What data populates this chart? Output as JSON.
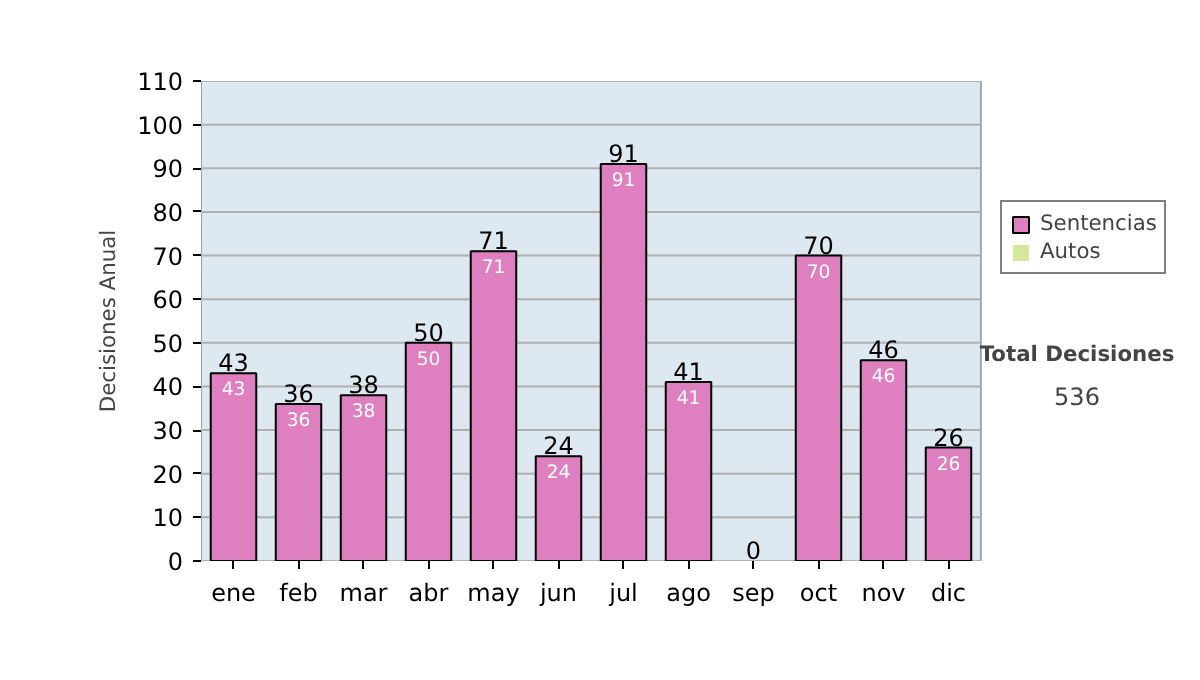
{
  "chart_data": {
    "type": "bar",
    "ylabel": "Decisiones Anual",
    "categories": [
      "ene",
      "feb",
      "mar",
      "abr",
      "may",
      "jun",
      "jul",
      "ago",
      "sep",
      "oct",
      "nov",
      "dic"
    ],
    "stacked": true,
    "series": [
      {
        "name": "Sentencias",
        "color": "#de80c0",
        "values": [
          43,
          36,
          38,
          50,
          71,
          24,
          91,
          41,
          0,
          70,
          46,
          26
        ],
        "value_labels": [
          "43",
          "36",
          "38",
          "50",
          "71",
          "24",
          "91",
          "41",
          null,
          "70",
          "46",
          "26"
        ]
      },
      {
        "name": "Autos",
        "color": "#d4e89c",
        "values": [
          0,
          0,
          0,
          0,
          0,
          0,
          0,
          0,
          0,
          0,
          0,
          0
        ]
      }
    ],
    "totals": [
      "43",
      "36",
      "38",
      "50",
      "71",
      "24",
      "91",
      "41",
      "0",
      "70",
      "46",
      "26"
    ],
    "ylim": [
      0,
      110
    ],
    "yticks": [
      0,
      10,
      20,
      30,
      40,
      50,
      60,
      70,
      80,
      90,
      100,
      110
    ],
    "grid": "y",
    "legend": "right",
    "annotations": [
      "Total Decisiones",
      "536"
    ]
  }
}
